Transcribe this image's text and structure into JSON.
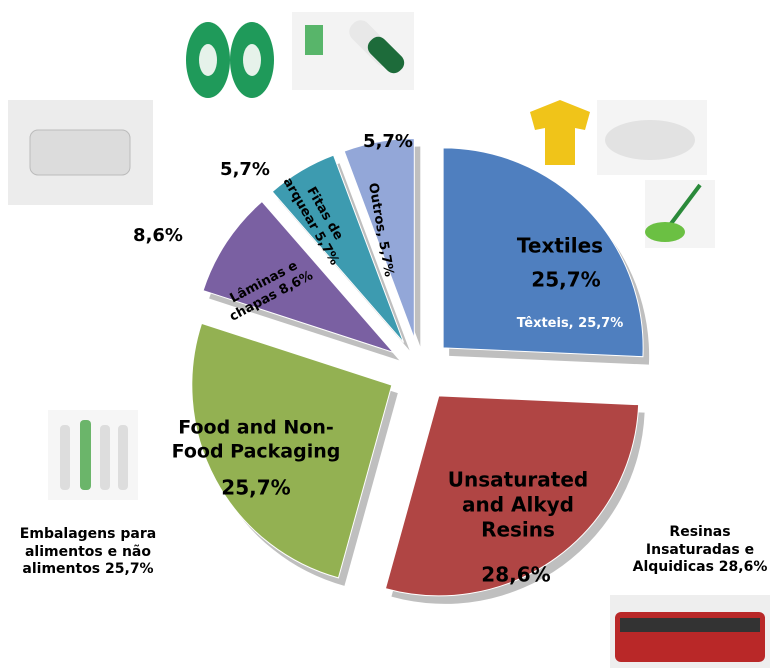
{
  "chart_data": {
    "type": "pie",
    "names": [
      "Textiles",
      "Unsaturated and Alkyd Resins",
      "Food and Non-Food Packaging",
      null,
      null,
      null
    ],
    "values": [
      25.7,
      28.6,
      25.7,
      8.6,
      5.7,
      5.7
    ],
    "value_labels": [
      "25,7%",
      "28,6%",
      "25,7%",
      "8,6%",
      "5,7%",
      "5,7%"
    ],
    "local_labels": [
      "Têxteis, 25,7%",
      "Resinas Insaturadas e Alquidicas 28,6%",
      "Embalagens para alimentos e não alimentos 25,7%",
      "Lâminas e chapas 8,6%",
      "Fitas de arquear 5,7%",
      "Outros, 5,7%"
    ],
    "colors": [
      "#4f7fbf",
      "#b04544",
      "#93b152",
      "#7a60a2",
      "#3d9bb0",
      "#93a7d8"
    ]
  }
}
